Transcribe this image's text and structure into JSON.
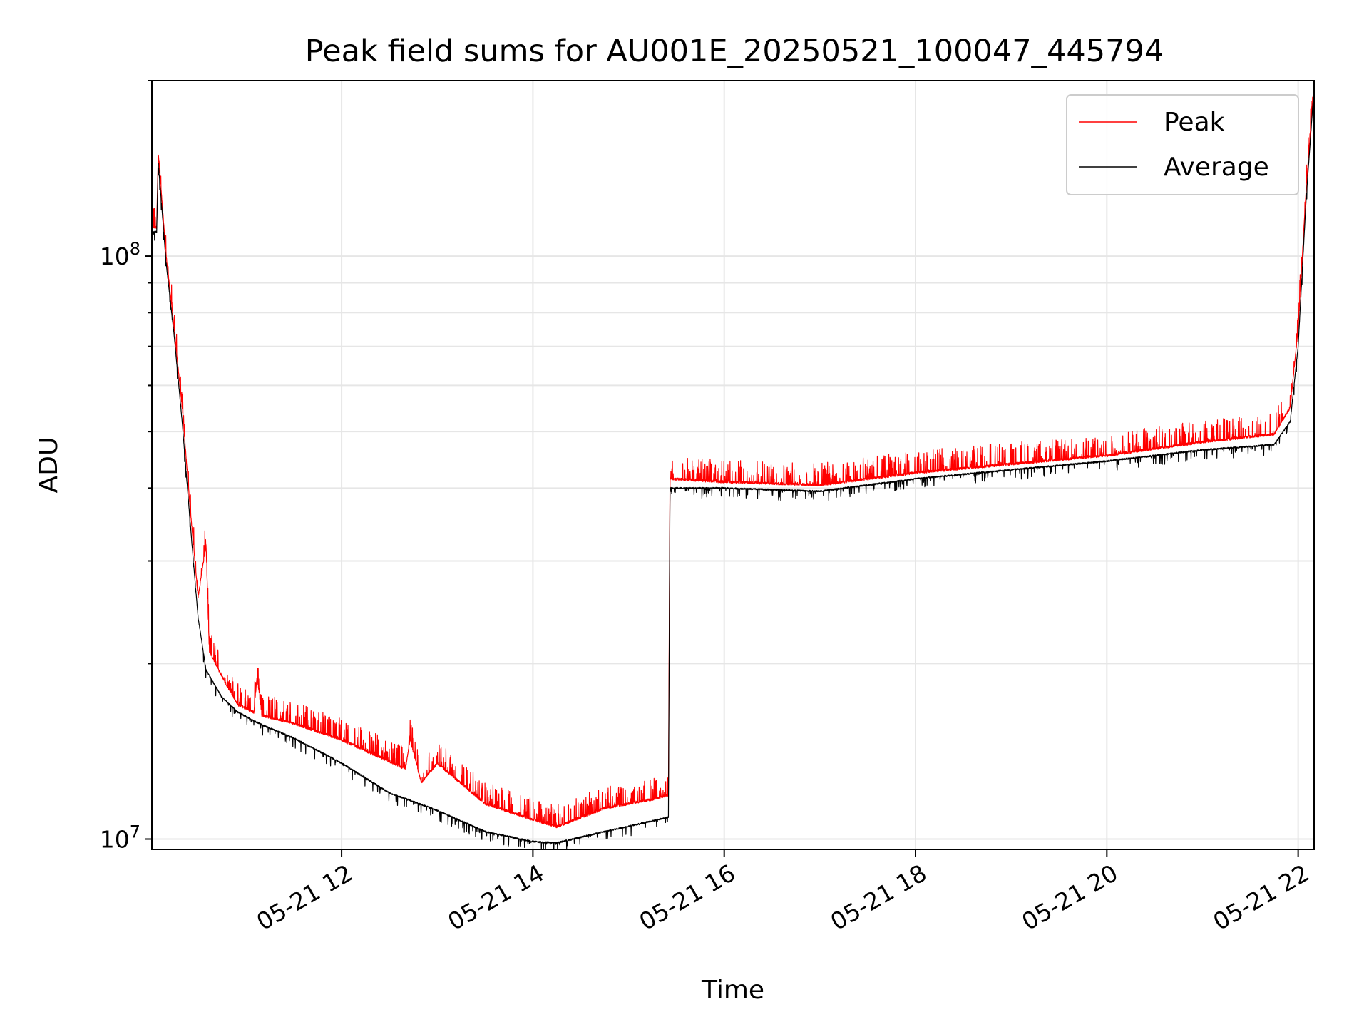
{
  "chart_data": {
    "type": "line",
    "title": "Peak field sums for AU001E_20250521_100047_445794",
    "xlabel": "Time",
    "ylabel": "ADU",
    "y_scale": "log",
    "ylim": [
      9600000,
      200000000
    ],
    "xlim": [
      "2025-05-21 10:01",
      "2025-05-21 22:10"
    ],
    "x_ticks": [
      "2025-05-21 12:00",
      "2025-05-21 14:00",
      "2025-05-21 16:00",
      "2025-05-21 18:00",
      "2025-05-21 20:00",
      "2025-05-21 22:00"
    ],
    "x_tick_labels": [
      "05-21 12",
      "05-21 14",
      "05-21 16",
      "05-21 18",
      "05-21 20",
      "05-21 22"
    ],
    "y_tick_labels": [
      {
        "base": "10",
        "exp": "7",
        "value": 10000000
      },
      {
        "base": "10",
        "exp": "8",
        "value": 100000000
      }
    ],
    "grid": true,
    "legend_position": "top-right",
    "colors": {
      "peak": "#ff0000",
      "average": "#000000",
      "grid": "#e6e6e6"
    },
    "series": [
      {
        "name": "Peak",
        "color": "#ff0000",
        "points": [
          [
            "2025-05-21 10:01",
            112000000
          ],
          [
            "2025-05-21 10:04",
            112000000
          ],
          [
            "2025-05-21 10:05",
            150000000
          ],
          [
            "2025-05-21 10:10",
            100000000
          ],
          [
            "2025-05-21 10:15",
            75000000
          ],
          [
            "2025-05-21 10:20",
            55000000
          ],
          [
            "2025-05-21 10:25",
            37000000
          ],
          [
            "2025-05-21 10:30",
            26000000
          ],
          [
            "2025-05-21 10:35",
            32000000
          ],
          [
            "2025-05-21 10:37",
            21000000
          ],
          [
            "2025-05-21 10:45",
            19000000
          ],
          [
            "2025-05-21 10:55",
            17000000
          ],
          [
            "2025-05-21 11:05",
            16500000
          ],
          [
            "2025-05-21 11:07",
            19000000
          ],
          [
            "2025-05-21 11:10",
            16300000
          ],
          [
            "2025-05-21 11:30",
            15800000
          ],
          [
            "2025-05-21 12:00",
            14800000
          ],
          [
            "2025-05-21 12:40",
            13200000
          ],
          [
            "2025-05-21 12:43",
            14800000
          ],
          [
            "2025-05-21 12:50",
            12500000
          ],
          [
            "2025-05-21 13:00",
            13500000
          ],
          [
            "2025-05-21 13:30",
            11500000
          ],
          [
            "2025-05-21 14:00",
            10800000
          ],
          [
            "2025-05-21 14:15",
            10500000
          ],
          [
            "2025-05-21 14:45",
            11300000
          ],
          [
            "2025-05-21 15:15",
            11700000
          ],
          [
            "2025-05-21 15:25",
            11900000
          ],
          [
            "2025-05-21 15:26",
            41500000
          ],
          [
            "2025-05-21 16:00",
            41000000
          ],
          [
            "2025-05-21 17:00",
            40500000
          ],
          [
            "2025-05-21 18:00",
            42500000
          ],
          [
            "2025-05-21 19:00",
            44000000
          ],
          [
            "2025-05-21 20:00",
            45500000
          ],
          [
            "2025-05-21 21:00",
            48000000
          ],
          [
            "2025-05-21 21:45",
            49500000
          ],
          [
            "2025-05-21 21:55",
            55000000
          ],
          [
            "2025-05-21 22:00",
            75000000
          ],
          [
            "2025-05-21 22:05",
            130000000
          ],
          [
            "2025-05-21 22:10",
            200000000
          ]
        ]
      },
      {
        "name": "Average",
        "color": "#000000",
        "points": [
          [
            "2025-05-21 10:01",
            110000000
          ],
          [
            "2025-05-21 10:04",
            110000000
          ],
          [
            "2025-05-21 10:05",
            145000000
          ],
          [
            "2025-05-21 10:10",
            97000000
          ],
          [
            "2025-05-21 10:15",
            73000000
          ],
          [
            "2025-05-21 10:20",
            52000000
          ],
          [
            "2025-05-21 10:25",
            35000000
          ],
          [
            "2025-05-21 10:30",
            24000000
          ],
          [
            "2025-05-21 10:35",
            19500000
          ],
          [
            "2025-05-21 10:45",
            17500000
          ],
          [
            "2025-05-21 10:55",
            16500000
          ],
          [
            "2025-05-21 11:10",
            15700000
          ],
          [
            "2025-05-21 11:30",
            14900000
          ],
          [
            "2025-05-21 12:00",
            13500000
          ],
          [
            "2025-05-21 12:30",
            12000000
          ],
          [
            "2025-05-21 13:00",
            11200000
          ],
          [
            "2025-05-21 13:30",
            10300000
          ],
          [
            "2025-05-21 14:00",
            9900000
          ],
          [
            "2025-05-21 14:15",
            9850000
          ],
          [
            "2025-05-21 14:45",
            10300000
          ],
          [
            "2025-05-21 15:25",
            10900000
          ],
          [
            "2025-05-21 15:26",
            40000000
          ],
          [
            "2025-05-21 16:00",
            40000000
          ],
          [
            "2025-05-21 17:00",
            39500000
          ],
          [
            "2025-05-21 18:00",
            41500000
          ],
          [
            "2025-05-21 19:00",
            43000000
          ],
          [
            "2025-05-21 20:00",
            44500000
          ],
          [
            "2025-05-21 21:00",
            46500000
          ],
          [
            "2025-05-21 21:45",
            47500000
          ],
          [
            "2025-05-21 21:55",
            52000000
          ],
          [
            "2025-05-21 22:00",
            70000000
          ],
          [
            "2025-05-21 22:05",
            125000000
          ],
          [
            "2025-05-21 22:10",
            195000000
          ]
        ]
      }
    ]
  }
}
